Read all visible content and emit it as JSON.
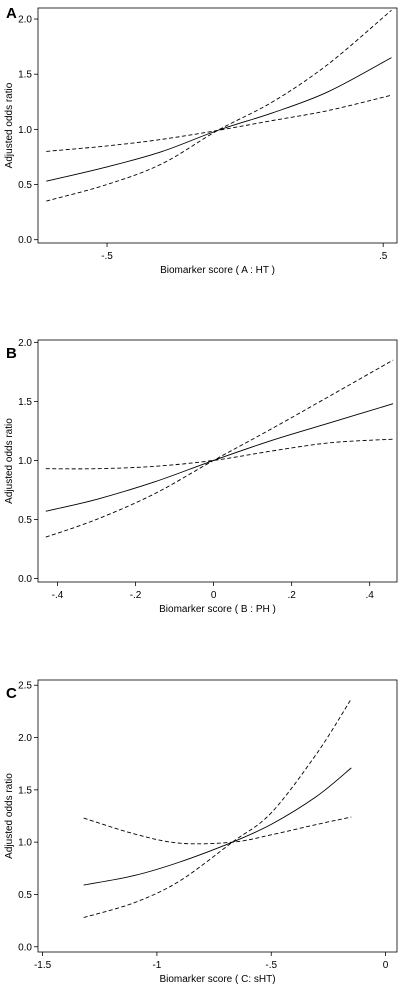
{
  "chart_data": [
    {
      "panel": "A",
      "type": "line",
      "xlabel": "Biomarker score ( A : HT )",
      "ylabel": "Adjusted odds ratio",
      "xlim": [
        -0.75,
        0.55
      ],
      "ylim": [
        -0.03,
        2.1
      ],
      "xticks": [
        -0.5,
        0.5
      ],
      "xtick_labels": [
        "-.5",
        ".5"
      ],
      "yticks": [
        0,
        0.5,
        1,
        1.5,
        2
      ],
      "ytick_labels": [
        "0.0",
        "0.5",
        "1.0",
        "1.5",
        "2.0"
      ],
      "grid": false,
      "series": [
        {
          "style": "solid",
          "x": [
            -0.72,
            -0.5,
            -0.3,
            -0.1,
            0.1,
            0.3,
            0.53
          ],
          "y": [
            0.53,
            0.66,
            0.8,
            0.99,
            1.15,
            1.34,
            1.65
          ]
        },
        {
          "style": "dashed",
          "x": [
            -0.72,
            -0.5,
            -0.3,
            -0.1,
            0.1,
            0.3,
            0.53
          ],
          "y": [
            0.8,
            0.85,
            0.91,
            0.99,
            1.08,
            1.17,
            1.31
          ]
        },
        {
          "style": "dashed",
          "x": [
            -0.72,
            -0.5,
            -0.3,
            -0.1,
            0.1,
            0.3,
            0.53
          ],
          "y": [
            0.35,
            0.5,
            0.69,
            0.99,
            1.25,
            1.59,
            2.08
          ]
        }
      ]
    },
    {
      "panel": "B",
      "type": "line",
      "xlabel": "Biomarker score ( B : PH )",
      "ylabel": "Adjusted odds ratio",
      "xlim": [
        -0.45,
        0.47
      ],
      "ylim": [
        -0.03,
        2.02
      ],
      "xticks": [
        -0.4,
        -0.2,
        0,
        0.2,
        0.4
      ],
      "xtick_labels": [
        "-.4",
        "-.2",
        "0",
        ".2",
        ".4"
      ],
      "yticks": [
        0,
        0.5,
        1,
        1.5,
        2
      ],
      "ytick_labels": [
        "0.0",
        "0.5",
        "1.0",
        "1.5",
        "2.0"
      ],
      "grid": false,
      "series": [
        {
          "style": "solid",
          "x": [
            -0.43,
            -0.3,
            -0.15,
            0,
            0.15,
            0.3,
            0.46
          ],
          "y": [
            0.57,
            0.67,
            0.82,
            1.0,
            1.17,
            1.32,
            1.48
          ]
        },
        {
          "style": "dashed",
          "x": [
            -0.43,
            -0.3,
            -0.15,
            0,
            0.15,
            0.3,
            0.46
          ],
          "y": [
            0.93,
            0.93,
            0.95,
            1.0,
            1.08,
            1.15,
            1.18
          ]
        },
        {
          "style": "dashed",
          "x": [
            -0.43,
            -0.3,
            -0.15,
            0,
            0.15,
            0.3,
            0.46
          ],
          "y": [
            0.35,
            0.5,
            0.72,
            1.0,
            1.27,
            1.55,
            1.85
          ]
        }
      ]
    },
    {
      "panel": "C",
      "type": "line",
      "xlabel": "Biomarker score ( C: sHT)",
      "ylabel": "Adjusted odds ratio",
      "xlim": [
        -1.52,
        0.05
      ],
      "ylim": [
        -0.05,
        2.55
      ],
      "xticks": [
        -1.5,
        -1,
        -0.5,
        0
      ],
      "xtick_labels": [
        "-1.5",
        "-1",
        "-.5",
        "0"
      ],
      "yticks": [
        0,
        0.5,
        1,
        1.5,
        2,
        2.5
      ],
      "ytick_labels": [
        "0.0",
        "0.5",
        "1.0",
        "1.5",
        "2.0",
        "2.5"
      ],
      "grid": false,
      "series": [
        {
          "style": "solid",
          "x": [
            -1.32,
            -1.1,
            -0.9,
            -0.67,
            -0.5,
            -0.3,
            -0.15
          ],
          "y": [
            0.59,
            0.68,
            0.81,
            1.0,
            1.17,
            1.44,
            1.71
          ]
        },
        {
          "style": "dashed",
          "x": [
            -1.32,
            -1.1,
            -0.9,
            -0.67,
            -0.5,
            -0.3,
            -0.15
          ],
          "y": [
            1.23,
            1.08,
            0.99,
            1.0,
            1.07,
            1.17,
            1.24
          ]
        },
        {
          "style": "dashed",
          "x": [
            -1.32,
            -1.1,
            -0.9,
            -0.67,
            -0.5,
            -0.3,
            -0.15
          ],
          "y": [
            0.28,
            0.42,
            0.63,
            1.0,
            1.28,
            1.85,
            2.37
          ]
        }
      ]
    }
  ]
}
